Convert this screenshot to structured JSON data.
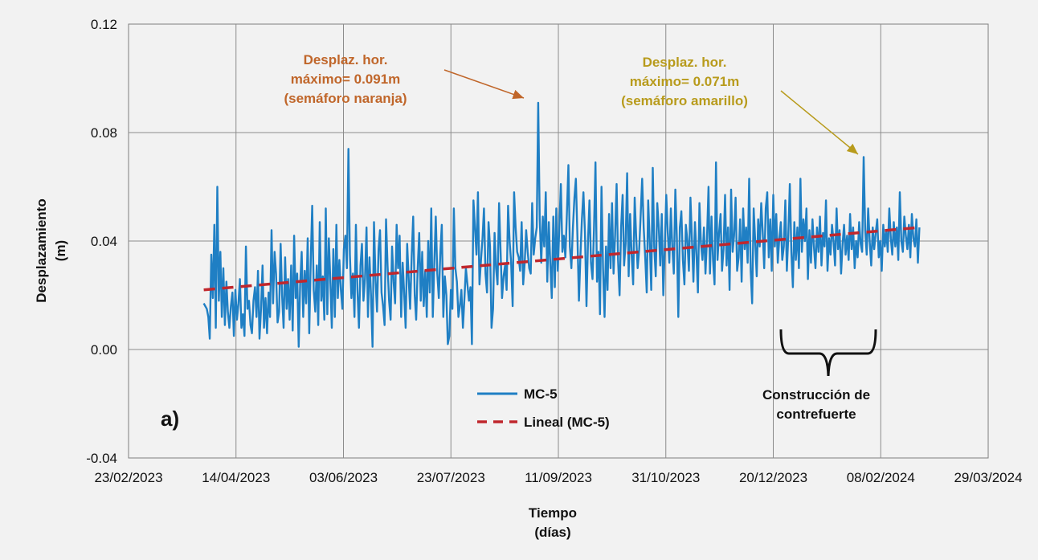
{
  "chart_data": {
    "type": "line",
    "panel_label": "a)",
    "xlabel_line1": "Tiempo",
    "xlabel_line2": "(días)",
    "ylabel_line1": "Desplazamiento",
    "ylabel_line2": "(m)",
    "x_tick_labels": [
      "23/02/2023",
      "14/04/2023",
      "03/06/2023",
      "23/07/2023",
      "11/09/2023",
      "31/10/2023",
      "20/12/2023",
      "08/02/2024",
      "29/03/2024"
    ],
    "x_range_days": [
      0,
      400
    ],
    "y_tick_labels": [
      "0.12",
      "0.08",
      "0.04",
      "0.00",
      "-0.04"
    ],
    "ylim": [
      -0.04,
      0.12
    ],
    "grid": true,
    "series": [
      {
        "name": "MC-5",
        "style": "solid",
        "color": "#1f7fc4",
        "x_start_day": 35,
        "x_end_day": 368,
        "values": [
          0.017,
          0.016,
          0.015,
          0.012,
          0.004,
          0.035,
          0.019,
          0.046,
          0.008,
          0.06,
          0.018,
          0.036,
          0.012,
          0.03,
          0.009,
          0.025,
          0.014,
          0.008,
          0.016,
          0.021,
          0.005,
          0.022,
          0.011,
          0.017,
          0.026,
          0.008,
          0.013,
          0.005,
          0.038,
          0.015,
          0.018,
          0.009,
          0.006,
          0.018,
          0.023,
          0.012,
          0.029,
          0.004,
          0.015,
          0.031,
          0.008,
          0.019,
          0.006,
          0.021,
          0.012,
          0.044,
          0.017,
          0.036,
          0.028,
          0.01,
          0.014,
          0.039,
          0.02,
          0.008,
          0.034,
          0.015,
          0.026,
          0.011,
          0.031,
          0.007,
          0.042,
          0.019,
          0.028,
          0.001,
          0.024,
          0.036,
          0.012,
          0.029,
          0.017,
          0.041,
          0.006,
          0.033,
          0.053,
          0.022,
          0.014,
          0.031,
          0.009,
          0.047,
          0.018,
          0.027,
          0.011,
          0.052,
          0.013,
          0.041,
          0.025,
          0.008,
          0.037,
          0.012,
          0.046,
          0.019,
          0.033,
          0.022,
          0.015,
          0.037,
          0.042,
          0.03,
          0.074,
          0.035,
          0.019,
          0.028,
          0.012,
          0.046,
          0.022,
          0.008,
          0.031,
          0.039,
          0.018,
          0.026,
          0.045,
          0.012,
          0.034,
          0.02,
          0.001,
          0.047,
          0.026,
          0.014,
          0.037,
          0.044,
          0.021,
          0.016,
          0.009,
          0.048,
          0.031,
          0.018,
          0.011,
          0.038,
          0.025,
          0.017,
          0.046,
          0.03,
          0.042,
          0.012,
          0.032,
          0.021,
          0.008,
          0.039,
          0.026,
          0.015,
          0.034,
          0.049,
          0.02,
          0.011,
          0.03,
          0.043,
          0.018,
          0.036,
          0.016,
          0.029,
          0.012,
          0.04,
          0.021,
          0.052,
          0.012,
          0.031,
          0.049,
          0.028,
          0.019,
          0.035,
          0.046,
          0.012,
          0.027,
          0.02,
          0.002,
          0.005,
          0.022,
          0.015,
          0.052,
          0.03,
          0.025,
          0.012,
          0.016,
          0.022,
          0.008,
          0.019,
          0.03,
          0.024,
          0.018,
          0.023,
          0.002,
          0.055,
          0.045,
          0.035,
          0.058,
          0.024,
          0.033,
          0.041,
          0.052,
          0.028,
          0.021,
          0.047,
          0.038,
          0.008,
          0.015,
          0.043,
          0.03,
          0.024,
          0.054,
          0.036,
          0.019,
          0.027,
          0.031,
          0.022,
          0.053,
          0.04,
          0.032,
          0.016,
          0.058,
          0.045,
          0.036,
          0.034,
          0.029,
          0.047,
          0.024,
          0.032,
          0.044,
          0.036,
          0.03,
          0.028,
          0.054,
          0.035,
          0.041,
          0.045,
          0.091,
          0.048,
          0.032,
          0.049,
          0.038,
          0.058,
          0.025,
          0.047,
          0.032,
          0.019,
          0.049,
          0.023,
          0.052,
          0.029,
          0.045,
          0.061,
          0.036,
          0.042,
          0.034,
          0.05,
          0.068,
          0.038,
          0.03,
          0.045,
          0.056,
          0.063,
          0.042,
          0.018,
          0.035,
          0.048,
          0.058,
          0.043,
          0.016,
          0.039,
          0.055,
          0.032,
          0.026,
          0.044,
          0.069,
          0.025,
          0.036,
          0.013,
          0.06,
          0.03,
          0.012,
          0.038,
          0.022,
          0.05,
          0.03,
          0.054,
          0.028,
          0.042,
          0.061,
          0.033,
          0.02,
          0.045,
          0.057,
          0.031,
          0.039,
          0.065,
          0.027,
          0.05,
          0.035,
          0.024,
          0.056,
          0.042,
          0.03,
          0.037,
          0.05,
          0.063,
          0.045,
          0.034,
          0.021,
          0.055,
          0.04,
          0.022,
          0.067,
          0.038,
          0.027,
          0.054,
          0.045,
          0.031,
          0.05,
          0.02,
          0.038,
          0.057,
          0.043,
          0.032,
          0.052,
          0.038,
          0.028,
          0.059,
          0.041,
          0.012,
          0.045,
          0.051,
          0.033,
          0.024,
          0.046,
          0.04,
          0.029,
          0.056,
          0.041,
          0.025,
          0.047,
          0.035,
          0.021,
          0.054,
          0.039,
          0.033,
          0.045,
          0.028,
          0.041,
          0.06,
          0.028,
          0.049,
          0.033,
          0.024,
          0.069,
          0.033,
          0.043,
          0.05,
          0.029,
          0.037,
          0.057,
          0.031,
          0.045,
          0.022,
          0.059,
          0.036,
          0.042,
          0.056,
          0.029,
          0.034,
          0.048,
          0.025,
          0.052,
          0.037,
          0.045,
          0.032,
          0.063,
          0.029,
          0.017,
          0.052,
          0.04,
          0.027,
          0.048,
          0.038,
          0.054,
          0.043,
          0.03,
          0.052,
          0.058,
          0.034,
          0.048,
          0.029,
          0.057,
          0.038,
          0.05,
          0.032,
          0.041,
          0.047,
          0.033,
          0.038,
          0.055,
          0.029,
          0.042,
          0.061,
          0.036,
          0.023,
          0.047,
          0.033,
          0.045,
          0.03,
          0.063,
          0.036,
          0.048,
          0.04,
          0.052,
          0.026,
          0.044,
          0.032,
          0.048,
          0.038,
          0.03,
          0.045,
          0.036,
          0.049,
          0.031,
          0.043,
          0.038,
          0.055,
          0.029,
          0.041,
          0.035,
          0.046,
          0.04,
          0.031,
          0.052,
          0.037,
          0.044,
          0.028,
          0.039,
          0.046,
          0.035,
          0.042,
          0.033,
          0.05,
          0.037,
          0.045,
          0.03,
          0.04,
          0.034,
          0.047,
          0.039,
          0.036,
          0.071,
          0.044,
          0.035,
          0.052,
          0.04,
          0.031,
          0.045,
          0.037,
          0.043,
          0.048,
          0.034,
          0.04,
          0.029,
          0.046,
          0.038,
          0.044,
          0.036,
          0.052,
          0.041,
          0.035,
          0.047,
          0.038,
          0.045,
          0.033,
          0.058,
          0.04,
          0.036,
          0.049,
          0.042,
          0.037,
          0.046,
          0.034,
          0.05,
          0.041,
          0.038,
          0.048,
          0.032,
          0.045
        ]
      },
      {
        "name": "Lineal (MC-5)",
        "style": "dashed",
        "color": "#c0272d",
        "x": [
          35,
          368
        ],
        "values": [
          0.022,
          0.045
        ]
      }
    ],
    "annotations": {
      "orange": {
        "lines": [
          "Desplaz. hor.",
          "máximo= 0.091m",
          "(semáforo naranja)"
        ],
        "color": "#c0662a",
        "points_to": {
          "x_day": 199,
          "y": 0.091
        }
      },
      "gold": {
        "lines": [
          "Desplaz. hor.",
          "máximo= 0.071m",
          "(semáforo amarillo)"
        ],
        "color": "#b89b1c",
        "points_to": {
          "x_day": 351,
          "y": 0.071
        }
      },
      "construction": {
        "lines": [
          "Construcción de",
          "contrefuerte"
        ],
        "x_range_days": [
          300,
          344
        ]
      }
    },
    "legend_position": "bottom-center"
  }
}
